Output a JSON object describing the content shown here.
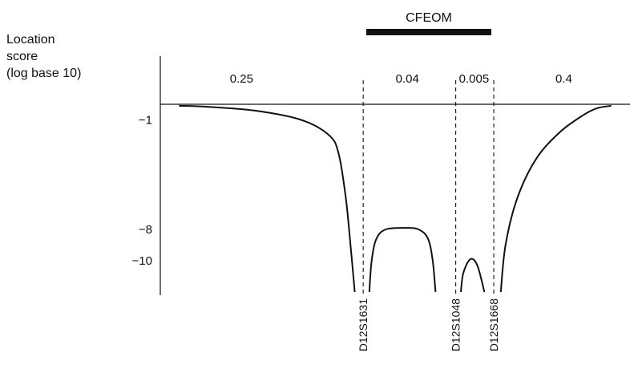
{
  "chart_data": {
    "type": "line",
    "title": "",
    "ylabel": [
      "Location",
      "score",
      "(log base 10)"
    ],
    "region_label": "CFEOM",
    "y_ticks": [
      {
        "value": -1,
        "label": "−1"
      },
      {
        "value": -8,
        "label": "−8"
      },
      {
        "value": -10,
        "label": "−10"
      }
    ],
    "ylim": [
      -12,
      0
    ],
    "markers": [
      {
        "name": "D12S1631",
        "position": 0.432
      },
      {
        "name": "D12S1048",
        "position": 0.629
      },
      {
        "name": "D12S1668",
        "position": 0.71
      }
    ],
    "recombination_fractions": [
      {
        "label": "0.25",
        "position": 0.173
      },
      {
        "label": "0.04",
        "position": 0.526
      },
      {
        "label": "0.005",
        "position": 0.668
      },
      {
        "label": "0.4",
        "position": 0.859
      }
    ],
    "series": [
      {
        "segments": [
          [
            [
              0.04,
              -0.1
            ],
            [
              0.1,
              -0.16
            ],
            [
              0.2,
              -0.4
            ],
            [
              0.3,
              -1.0
            ],
            [
              0.36,
              -2.0
            ],
            [
              0.38,
              -3.2
            ],
            [
              0.395,
              -6.0
            ],
            [
              0.405,
              -9.0
            ],
            [
              0.414,
              -12.0
            ]
          ],
          [
            [
              0.445,
              -12.0
            ],
            [
              0.45,
              -10.0
            ],
            [
              0.46,
              -8.6
            ],
            [
              0.48,
              -8.0
            ],
            [
              0.52,
              -7.9
            ],
            [
              0.55,
              -8.0
            ],
            [
              0.57,
              -8.6
            ],
            [
              0.58,
              -10.0
            ],
            [
              0.586,
              -12.0
            ]
          ],
          [
            [
              0.64,
              -12.0
            ],
            [
              0.645,
              -10.8
            ],
            [
              0.66,
              -9.9
            ],
            [
              0.675,
              -10.3
            ],
            [
              0.69,
              -12.0
            ]
          ],
          [
            [
              0.725,
              -12.0
            ],
            [
              0.735,
              -9.0
            ],
            [
              0.76,
              -6.0
            ],
            [
              0.8,
              -3.5
            ],
            [
              0.85,
              -1.8
            ],
            [
              0.9,
              -0.7
            ],
            [
              0.93,
              -0.25
            ],
            [
              0.96,
              -0.1
            ]
          ]
        ]
      }
    ],
    "grid": false,
    "legend": "none"
  }
}
